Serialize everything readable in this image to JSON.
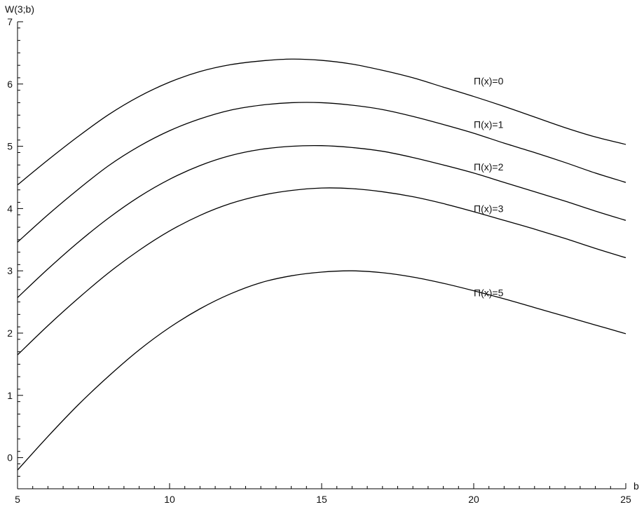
{
  "chart_data": {
    "type": "line",
    "title": "",
    "xlabel": "b",
    "ylabel": "W(3;b)",
    "xlim": [
      5,
      25
    ],
    "ylim": [
      -0.5,
      7
    ],
    "x_ticks": [
      5,
      10,
      15,
      20,
      25
    ],
    "x_tick_labels": [
      "5",
      "10",
      "15",
      "20",
      "25"
    ],
    "x_minor_step": 0.5,
    "y_ticks": [
      0,
      1,
      2,
      3,
      4,
      5,
      6,
      7
    ],
    "y_tick_labels": [
      "0",
      "1",
      "2",
      "3",
      "4",
      "5",
      "6",
      "7"
    ],
    "y_minor_step": 0.2,
    "grid": false,
    "legend": "none",
    "line_color": "#000000",
    "series": [
      {
        "name": "Π(x)=0",
        "label_at": [
          20,
          6.05
        ],
        "x": [
          5,
          6,
          7,
          8,
          9,
          10,
          11,
          12,
          13,
          14,
          15,
          16,
          17,
          18,
          19,
          20,
          21,
          22,
          23,
          24,
          25
        ],
        "values": [
          4.38,
          4.78,
          5.16,
          5.51,
          5.8,
          6.03,
          6.2,
          6.31,
          6.37,
          6.4,
          6.38,
          6.32,
          6.22,
          6.1,
          5.95,
          5.8,
          5.64,
          5.47,
          5.3,
          5.15,
          5.03
        ]
      },
      {
        "name": "Π(x)=1",
        "label_at": [
          20,
          5.35
        ],
        "x": [
          5,
          6,
          7,
          8,
          9,
          10,
          11,
          12,
          13,
          14,
          15,
          16,
          17,
          18,
          19,
          20,
          21,
          22,
          23,
          24,
          25
        ],
        "values": [
          3.46,
          3.9,
          4.31,
          4.69,
          5.0,
          5.25,
          5.44,
          5.58,
          5.66,
          5.7,
          5.7,
          5.66,
          5.59,
          5.48,
          5.35,
          5.21,
          5.05,
          4.9,
          4.74,
          4.57,
          4.42
        ]
      },
      {
        "name": "Π(x)=2",
        "label_at": [
          20,
          4.67
        ],
        "x": [
          5,
          6,
          7,
          8,
          9,
          10,
          11,
          12,
          13,
          14,
          15,
          16,
          17,
          18,
          19,
          20,
          21,
          22,
          23,
          24,
          25
        ],
        "values": [
          2.57,
          3.03,
          3.46,
          3.85,
          4.19,
          4.47,
          4.69,
          4.85,
          4.95,
          5.0,
          5.01,
          4.98,
          4.92,
          4.82,
          4.7,
          4.57,
          4.42,
          4.27,
          4.12,
          3.96,
          3.81
        ]
      },
      {
        "name": "Π(x)=3",
        "label_at": [
          20,
          4.0
        ],
        "x": [
          5,
          6,
          7,
          8,
          9,
          10,
          11,
          12,
          13,
          14,
          15,
          16,
          17,
          18,
          19,
          20,
          21,
          22,
          23,
          24,
          25
        ],
        "values": [
          1.65,
          2.12,
          2.56,
          2.97,
          3.33,
          3.64,
          3.89,
          4.08,
          4.21,
          4.29,
          4.33,
          4.32,
          4.27,
          4.19,
          4.08,
          3.95,
          3.81,
          3.67,
          3.52,
          3.36,
          3.21
        ]
      },
      {
        "name": "Π(x)=5",
        "label_at": [
          20,
          2.65
        ],
        "x": [
          5,
          6,
          7,
          8,
          9,
          10,
          11,
          12,
          13,
          14,
          15,
          16,
          17,
          18,
          19,
          20,
          21,
          22,
          23,
          24,
          25
        ],
        "values": [
          -0.2,
          0.34,
          0.85,
          1.31,
          1.73,
          2.09,
          2.39,
          2.63,
          2.81,
          2.92,
          2.98,
          3.0,
          2.97,
          2.9,
          2.8,
          2.68,
          2.55,
          2.41,
          2.27,
          2.13,
          1.99
        ]
      }
    ]
  }
}
